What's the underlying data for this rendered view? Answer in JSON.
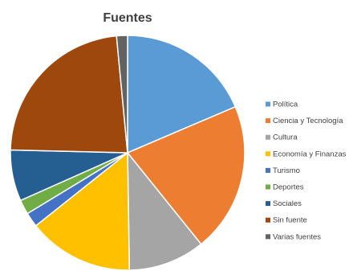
{
  "chart_data": {
    "type": "pie",
    "title": "Fuentes",
    "legend_position": "right",
    "slices": [
      {
        "label": "Política",
        "value": 18.5,
        "color": "#5B9BD5"
      },
      {
        "label": "Ciencia y Tecnología",
        "value": 20.5,
        "color": "#ED7D31"
      },
      {
        "label": "Cultura",
        "value": 10.5,
        "color": "#A5A5A5"
      },
      {
        "label": "Economía y Finanzas",
        "value": 14.5,
        "color": "#FFC000"
      },
      {
        "label": "Turismo",
        "value": 2.0,
        "color": "#4472C4"
      },
      {
        "label": "Deportes",
        "value": 2.0,
        "color": "#70AD47"
      },
      {
        "label": "Sociales",
        "value": 7.0,
        "color": "#255E91"
      },
      {
        "label": "Sin fuente",
        "value": 23.0,
        "color": "#9E480E"
      },
      {
        "label": "Varias fuentes",
        "value": 1.5,
        "color": "#636363"
      }
    ]
  }
}
